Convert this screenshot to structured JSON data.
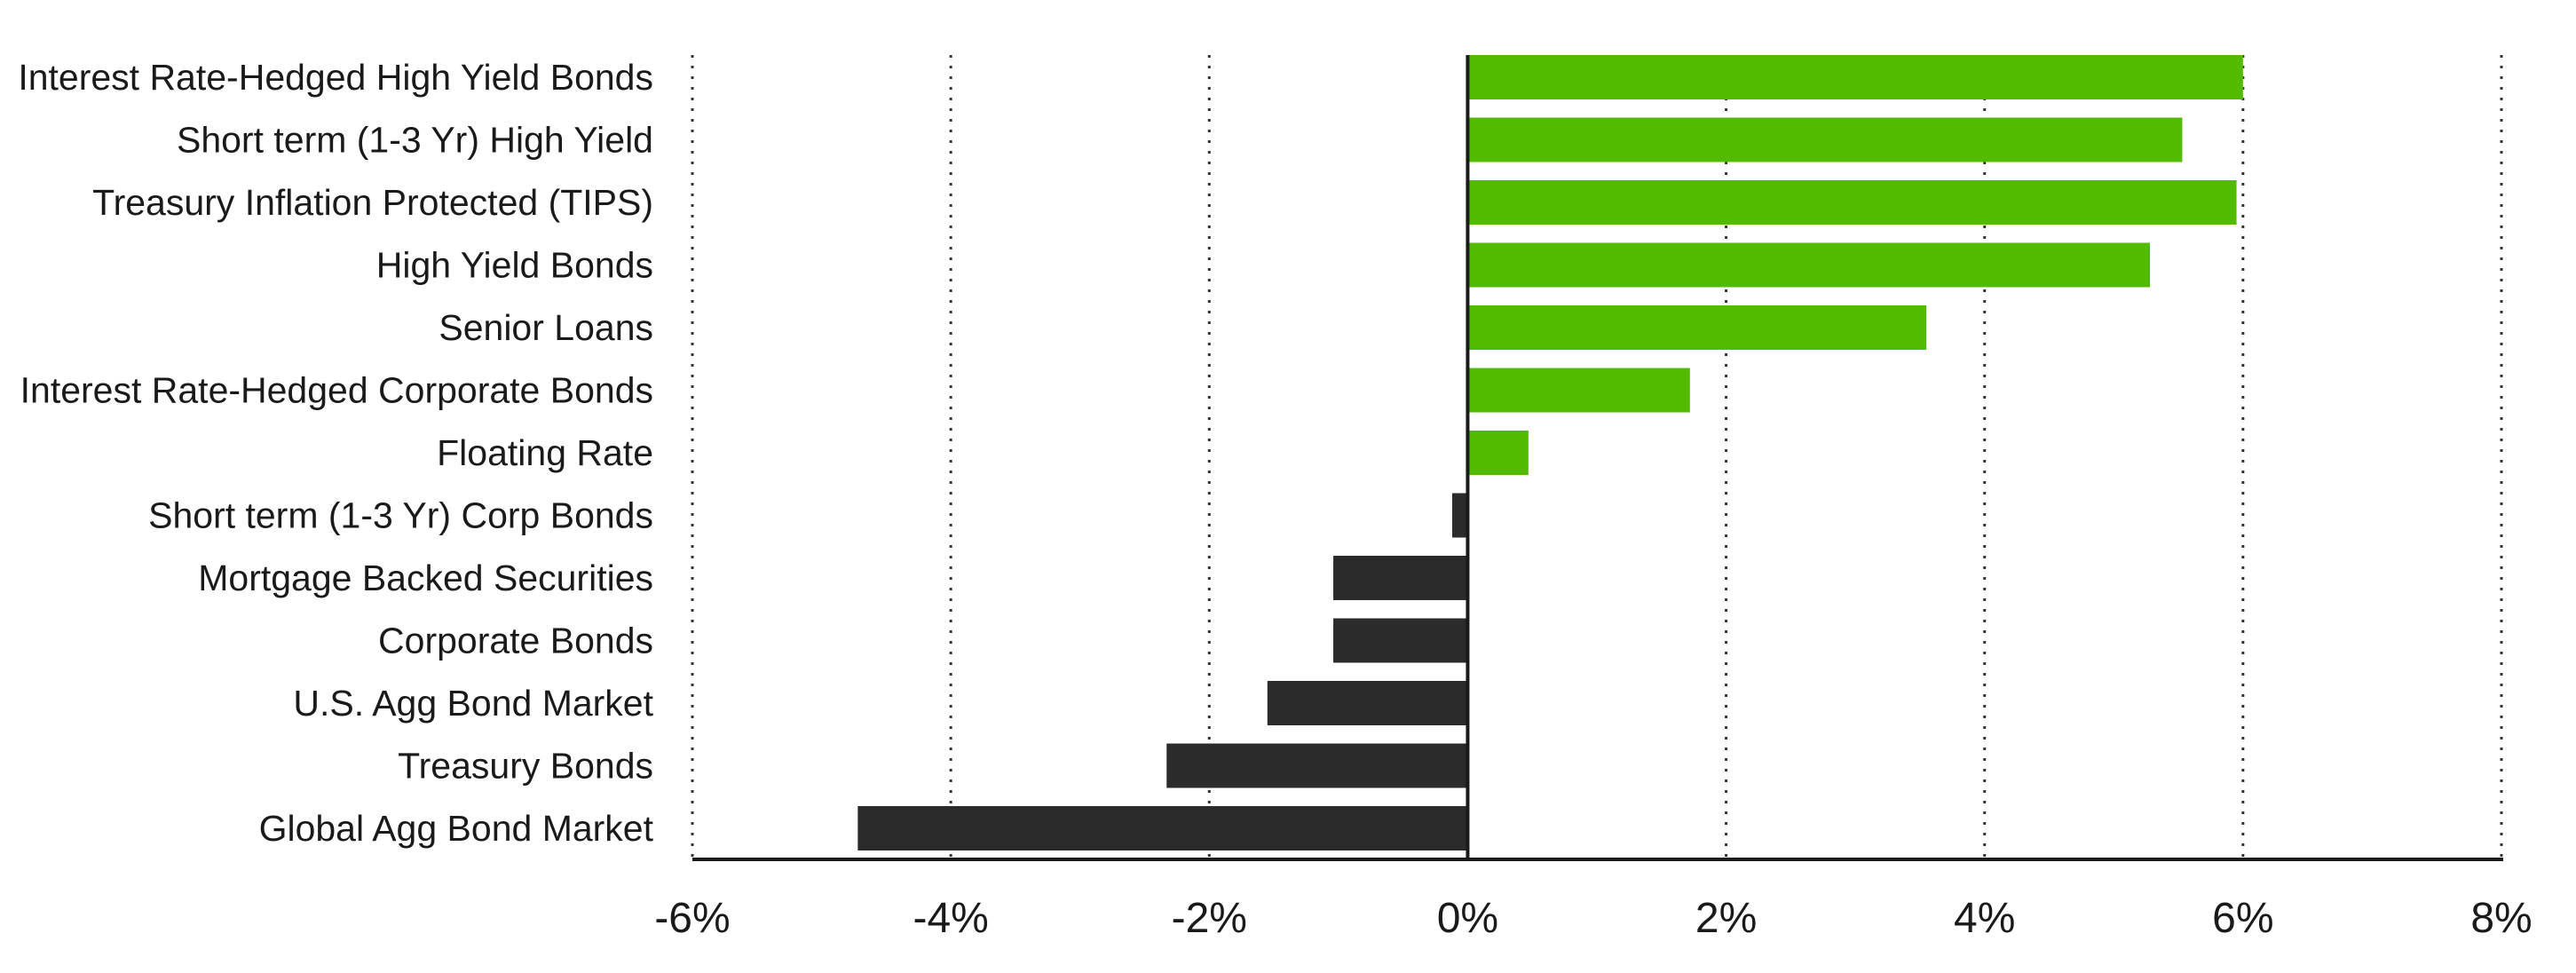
{
  "chart_data": {
    "type": "bar",
    "orientation": "horizontal",
    "categories": [
      "Interest Rate-Hedged High Yield Bonds",
      "Short term (1-3 Yr) High Yield",
      "Treasury Inflation Protected (TIPS)",
      "High Yield Bonds",
      "Senior Loans",
      "Interest Rate-Hedged Corporate Bonds",
      "Floating Rate",
      "Short term (1-3 Yr) Corp Bonds",
      "Mortgage Backed Securities",
      "Corporate Bonds",
      "U.S. Agg Bond Market",
      "Treasury Bonds",
      "Global Agg Bond Market"
    ],
    "values": [
      6.0,
      5.53,
      5.95,
      5.28,
      3.55,
      1.72,
      0.47,
      -0.12,
      -1.04,
      -1.04,
      -1.55,
      -2.33,
      -4.72
    ],
    "xlim": [
      -6,
      8
    ],
    "xticks": [
      -6,
      -4,
      -2,
      0,
      2,
      4,
      6,
      8
    ],
    "xtick_labels": [
      "-6%",
      "-4%",
      "-2%",
      "0%",
      "2%",
      "4%",
      "6%",
      "8%"
    ],
    "grid": "vertical dotted",
    "colors": {
      "positive": "#52bb00",
      "negative": "#2b2b2b",
      "grid": "#333333",
      "axis": "#1a1a1a"
    },
    "title": "",
    "xlabel": "",
    "ylabel": ""
  }
}
